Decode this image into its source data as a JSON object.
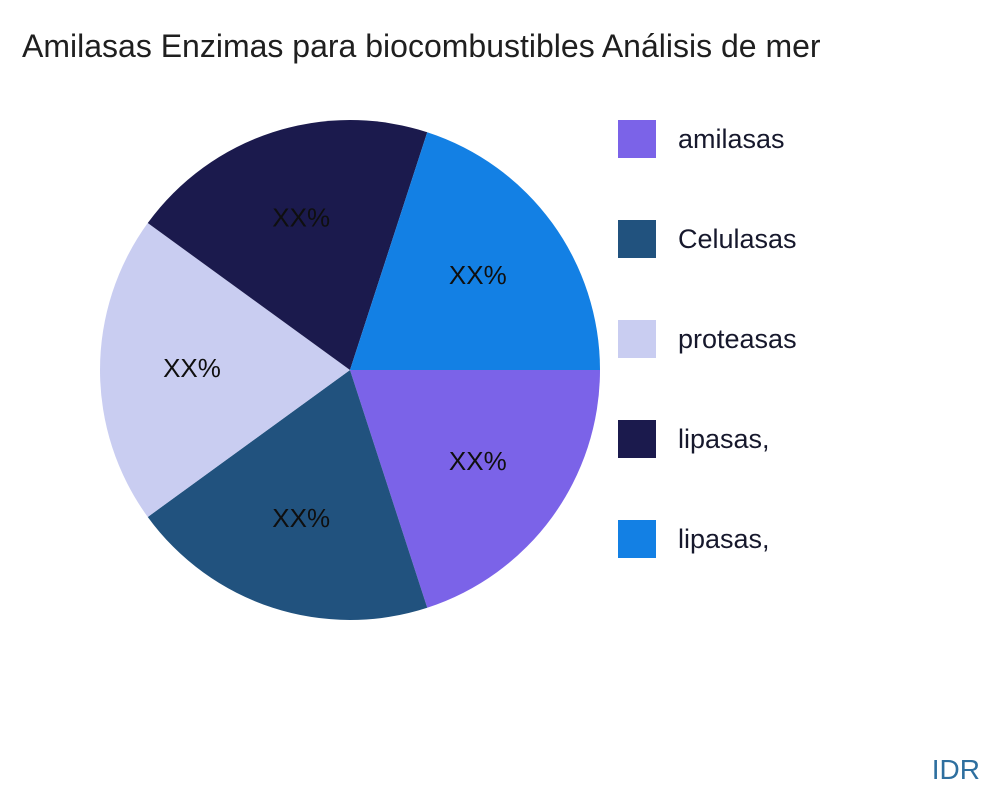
{
  "title": "Amilasas Enzimas para biocombustibles Análisis de mer",
  "watermark": "IDR",
  "colors": {
    "title": "#1f1f1f",
    "legend_text": "#16182c",
    "pie_label": "#0f0f0f",
    "watermark": "#2e6f9f"
  },
  "chart_data": {
    "type": "pie",
    "title": "Amilasas Enzimas para biocombustibles Análisis de mer",
    "legend_position": "right",
    "start_angle_deg": 0,
    "direction": "clockwise",
    "slices": [
      {
        "label": "amilasas",
        "value": 20,
        "display": "XX%",
        "color": "#7b63e8"
      },
      {
        "label": "Celulasas",
        "value": 20,
        "display": "XX%",
        "color": "#21527e"
      },
      {
        "label": "proteasas",
        "value": 20,
        "display": "XX%",
        "color": "#c9cdf1"
      },
      {
        "label": "lipasas,",
        "value": 20,
        "display": "XX%",
        "color": "#1b1a4d"
      },
      {
        "label": "lipasas,",
        "value": 20,
        "display": "XX%",
        "color": "#1380e4"
      }
    ]
  }
}
